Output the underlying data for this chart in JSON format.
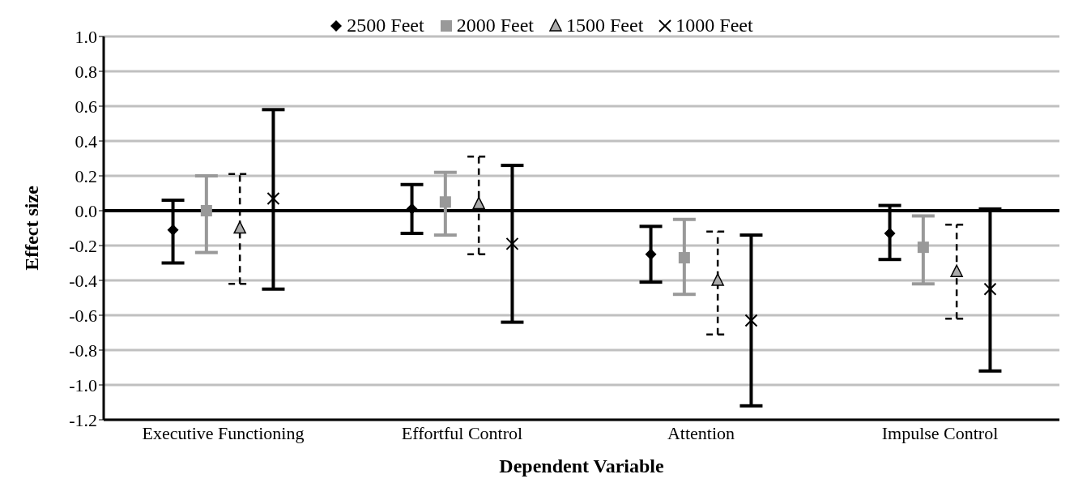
{
  "chart_data": {
    "type": "scatter",
    "xlabel": "Dependent Variable",
    "ylabel": "Effect size",
    "categories": [
      "Executive Functioning",
      "Effortful Control",
      "Attention",
      "Impulse Control"
    ],
    "series": [
      {
        "name": "2500 Feet",
        "color": "#000000",
        "marker": "diamond",
        "values": [
          -0.11,
          0.01,
          -0.25,
          -0.13
        ],
        "errors": [
          [
            -0.3,
            0.06
          ],
          [
            -0.13,
            0.15
          ],
          [
            -0.41,
            -0.09
          ],
          [
            -0.28,
            0.03
          ]
        ]
      },
      {
        "name": "2000 Feet",
        "color": "#999999",
        "marker": "square",
        "values": [
          0.0,
          0.05,
          -0.27,
          -0.21
        ],
        "errors": [
          [
            -0.24,
            0.2
          ],
          [
            -0.14,
            0.22
          ],
          [
            -0.48,
            -0.05
          ],
          [
            -0.42,
            -0.03
          ]
        ]
      },
      {
        "name": "1500 Feet",
        "color": "#000000",
        "marker": "triangle",
        "line_style": "dashed",
        "values": [
          -0.1,
          0.04,
          -0.4,
          -0.35
        ],
        "errors": [
          [
            -0.42,
            0.21
          ],
          [
            -0.25,
            0.31
          ],
          [
            -0.71,
            -0.12
          ],
          [
            -0.62,
            -0.08
          ]
        ]
      },
      {
        "name": "1000 Feet",
        "color": "#000000",
        "marker": "cross",
        "values": [
          0.07,
          -0.19,
          -0.63,
          -0.45
        ],
        "errors": [
          [
            -0.45,
            0.58
          ],
          [
            -0.64,
            0.26
          ],
          [
            -1.12,
            -0.14
          ],
          [
            -0.92,
            0.01
          ]
        ]
      }
    ],
    "ylim": [
      -1.2,
      1.0
    ],
    "yticks": [
      {
        "value": -1.2,
        "label": "-1.2"
      },
      {
        "value": -1.0,
        "label": "-1.0"
      },
      {
        "value": -0.8,
        "label": "-0.8"
      },
      {
        "value": -0.6,
        "label": "-0.6"
      },
      {
        "value": -0.4,
        "label": "-0.4"
      },
      {
        "value": -0.2,
        "label": "-0.2"
      },
      {
        "value": 0,
        "label": "0.0"
      },
      {
        "value": 0.2,
        "label": "0.2"
      },
      {
        "value": 0.4,
        "label": "0.4"
      },
      {
        "value": 0.6,
        "label": "0.6"
      },
      {
        "value": 0.8,
        "label": "0.8"
      },
      {
        "value": 1.0,
        "label": "1.0"
      }
    ],
    "ref_lines": [
      {
        "axis": "y",
        "value": 0,
        "color": "#000000"
      }
    ],
    "grid": "y",
    "legend": "top"
  }
}
